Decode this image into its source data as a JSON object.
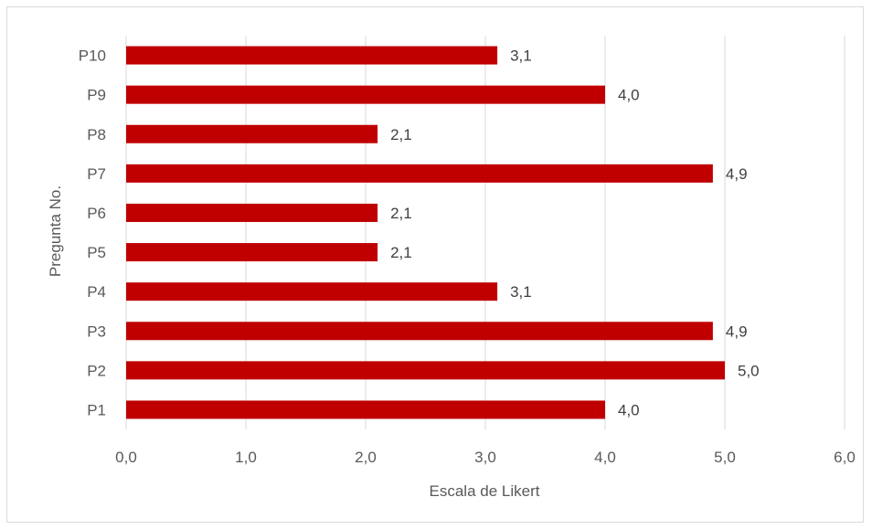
{
  "chart_data": {
    "type": "bar",
    "orientation": "horizontal",
    "categories": [
      "P1",
      "P2",
      "P3",
      "P4",
      "P5",
      "P6",
      "P7",
      "P8",
      "P9",
      "P10"
    ],
    "values": [
      4.0,
      5.0,
      4.9,
      3.1,
      2.1,
      2.1,
      4.9,
      2.1,
      4.0,
      3.1
    ],
    "value_labels": [
      "4,0",
      "5,0",
      "4,9",
      "3,1",
      "2,1",
      "2,1",
      "4,9",
      "2,1",
      "4,0",
      "3,1"
    ],
    "xlabel": "Escala de Likert",
    "ylabel": "Pregunta  No.",
    "xlim": [
      0,
      6
    ],
    "x_ticks": [
      0,
      1,
      2,
      3,
      4,
      5,
      6
    ],
    "x_tick_labels": [
      "0,0",
      "1,0",
      "2,0",
      "3,0",
      "4,0",
      "5,0",
      "6,0"
    ],
    "grid": "vertical",
    "bar_color": "#c00000",
    "gridline_color": "#d9d9d9"
  }
}
